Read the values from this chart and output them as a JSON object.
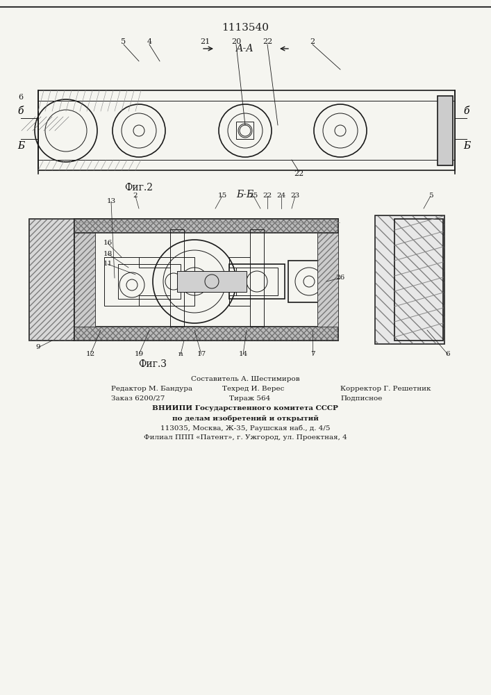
{
  "patent_number": "1113540",
  "fig2_label": "Фиг.2",
  "fig3_label": "Фиг.3",
  "section_aa": "А-А",
  "section_bb": "Б-Б",
  "bottom_text_line1": "Составитель А. Шестимиров",
  "bottom_text_line2_left": "Редактор М. Бандура",
  "bottom_text_line2_mid": "Техред И. Верес",
  "bottom_text_line2_right": "Корректор Г. Решетник",
  "bottom_text_line3_left": "Заказ 6200/27",
  "bottom_text_line3_mid": "Тираж 564",
  "bottom_text_line3_right": "Подписное",
  "bottom_text_line4": "ВНИИПИ Государственного комитета СССР",
  "bottom_text_line5": "по делам изобретений и открытий",
  "bottom_text_line6": "113035, Москва, Ж-35, Раушская наб., д. 4/5",
  "bottom_text_line7": "Филиал ППП «Патент», г. Ужгород, ул. Проектная, 4",
  "bg_color": "#f5f5f0",
  "line_color": "#1a1a1a",
  "hatch_color": "#333333"
}
